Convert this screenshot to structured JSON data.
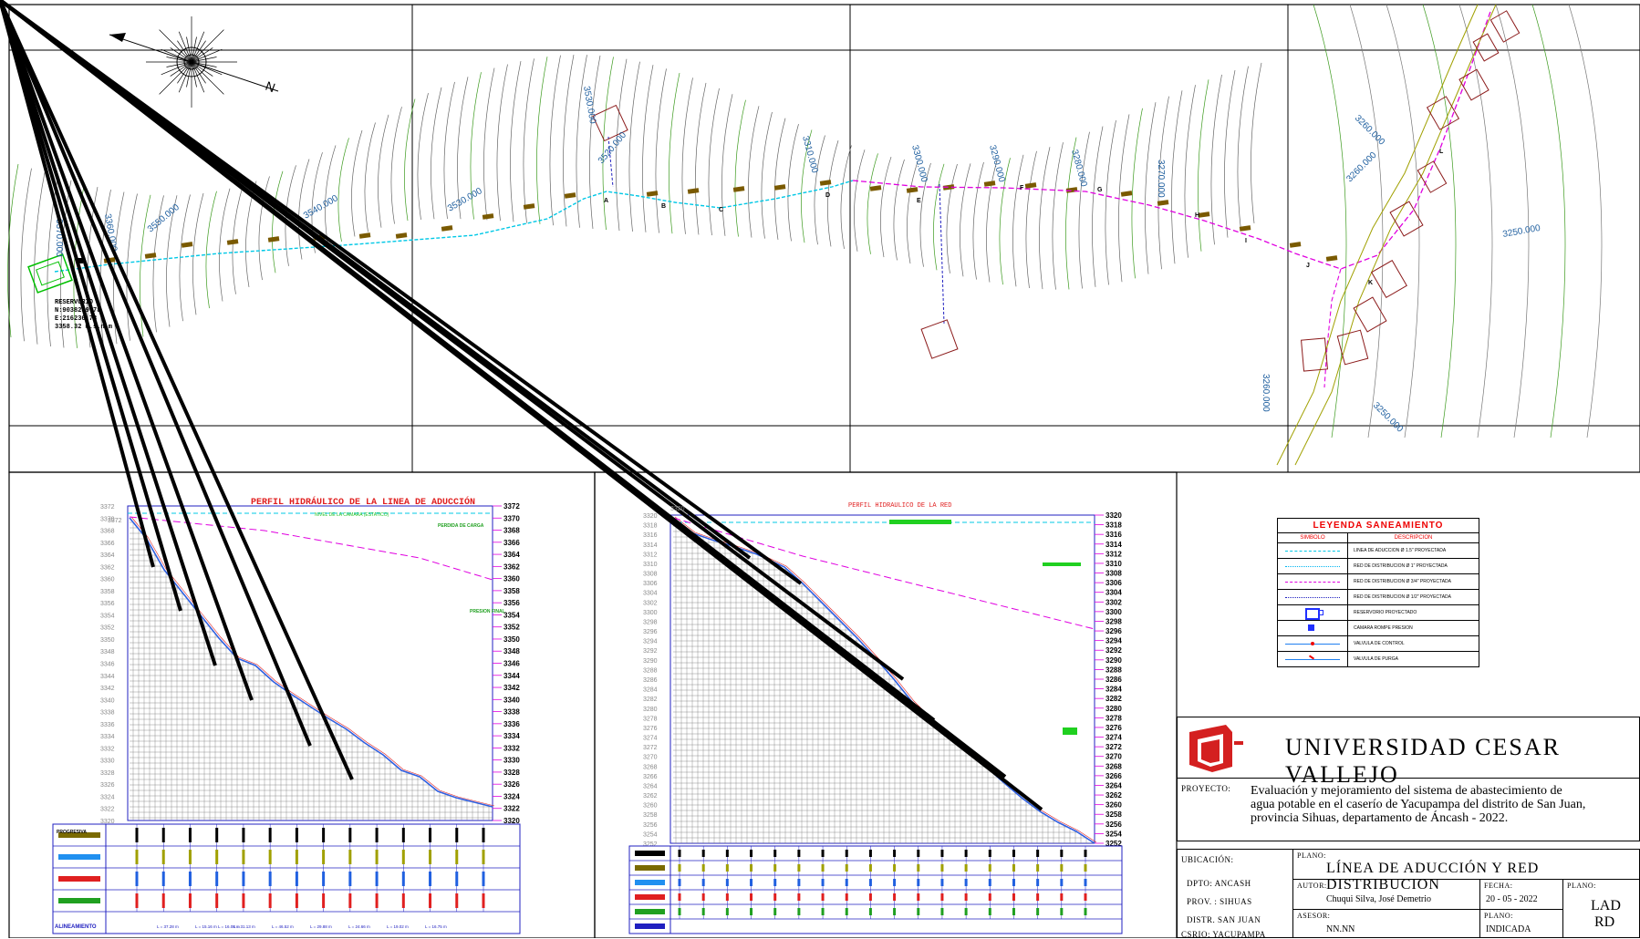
{
  "plan": {
    "reservoir": {
      "title": "RESERVORIO",
      "n": "N:9038239.78",
      "e": "E:216236.78",
      "elev": "3358.32 m.s.n.m"
    },
    "contours": [
      "3370.000",
      "3360.000",
      "3550.000",
      "3540.000",
      "3530.000",
      "3530.000",
      "3520.000",
      "3310.000",
      "3300.000",
      "3290.000",
      "3280.000",
      "3270.000",
      "3260.000",
      "3260.000",
      "3250.000",
      "3260.000",
      "3250.000"
    ],
    "points": [
      "A",
      "B",
      "C",
      "D",
      "E",
      "F",
      "G",
      "H",
      "I",
      "J",
      "K",
      "L"
    ]
  },
  "profile1": {
    "title": "PERFIL HIDRÁULICO DE LA LINEA DE ADUCCIÓN",
    "static_label": "NIVEL DE LA CAMARA (ESTATICO)",
    "loss_label": "PERDIDA DE CARGA",
    "final_label": "PRESION FINAL",
    "top_left": "3372",
    "y_ticks": [
      "3372",
      "3370",
      "3368",
      "3366",
      "3364",
      "3362",
      "3360",
      "3358",
      "3356",
      "3354",
      "3352",
      "3350",
      "3348",
      "3346",
      "3344",
      "3342",
      "3340",
      "3338",
      "3336",
      "3334",
      "3332",
      "3330",
      "3328",
      "3326",
      "3324",
      "3322",
      "3320"
    ],
    "progresiva_label": "PROGRESIVA",
    "alineamiento_label": "ALINEAMIENTO",
    "segments": [
      "L = 37.28 m",
      "L = 15.16 m L = 16.08 m",
      "L = 31.13 m",
      "L = 46.52 m",
      "L = 29.88 m",
      "L = 24.66 m",
      "L = 19.02 m",
      "L = 16.75 m"
    ]
  },
  "profile2": {
    "title": "PERFIL HIDRAULICO DE LA RED",
    "top_left": "3320",
    "y_ticks": [
      "3320",
      "3318",
      "3316",
      "3314",
      "3312",
      "3310",
      "3308",
      "3306",
      "3304",
      "3302",
      "3300",
      "3298",
      "3296",
      "3294",
      "3292",
      "3290",
      "3288",
      "3286",
      "3284",
      "3282",
      "3280",
      "3278",
      "3276",
      "3274",
      "3272",
      "3270",
      "3268",
      "3266",
      "3264",
      "3262",
      "3260",
      "3258",
      "3256",
      "3254",
      "3252"
    ]
  },
  "legend": {
    "title": "LEYENDA SANEAMIENTO",
    "col_symbol": "SIMBOLO",
    "col_desc": "DESCRIPCION",
    "rows": [
      {
        "desc": "LINEA DE ADUCCION Ø 1.5\" PROYECTADA",
        "color": "#00c8e6",
        "style": "dash"
      },
      {
        "desc": "RED DE DISTRIBUCION Ø 1\" PROYECTADA",
        "color": "#00b4f0",
        "style": "dot"
      },
      {
        "desc": "RED DE DISTRIBUCION Ø 3/4\" PROYECTADA",
        "color": "#e000e0",
        "style": "dash"
      },
      {
        "desc": "RED DE DISTRIBUCION Ø 1/2\" PROYECTADA",
        "color": "#2020c0",
        "style": "dot"
      },
      {
        "desc": "RESERVORIO PROYECTADO",
        "color": "#2030ff",
        "style": "box"
      },
      {
        "desc": "CAMARA ROMPE PRESION",
        "color": "#2030ff",
        "style": "small"
      },
      {
        "desc": "VALVULA DE CONTROL",
        "color": "#e00",
        "style": "valve"
      },
      {
        "desc": "VALVULA DE PURGA",
        "color": "#e00",
        "style": "purge"
      }
    ]
  },
  "titleblock": {
    "university": "UNIVERSIDAD CESAR VALLEJO",
    "proyecto_label": "PROYECTO:",
    "proyecto_l1": "Evaluación y mejoramiento del sistema de abastecimiento de",
    "proyecto_l2": "agua potable en el caserío de Yacupampa del distrito de San Juan,",
    "proyecto_l3": "provincia Sihuas, departamento de Áncash - 2022.",
    "ubicacion_label": "UBICACIÓN:",
    "dpto": "DPTO: ANCASH",
    "prov": "PROV.   : SIHUAS",
    "distr": "DISTR.  SAN JUAN",
    "csrio": "CSRIO: YACUPAMPA",
    "plano_label": "PLANO:",
    "plano_title": "LÍNEA DE ADUCCIÓN Y RED DISTRIBUCION",
    "autor_label": "AUTOR:",
    "autor": "Chuqui Silva, José Demetrio",
    "fecha_label": "FECHA:",
    "fecha": "20 - 05 - 2022",
    "plano_no_label": "PLANO:",
    "plano_no_1": "LAD",
    "plano_no_2": "RD",
    "asesor_label": "ASESOR:",
    "asesor": "NN.NN",
    "escala_label": "PLANO:",
    "escala": "INDICADA"
  },
  "colors": {
    "adduction": "#00c8e6",
    "network": "#e000e0",
    "terrain": "#3060e0",
    "accent": "#e02020"
  }
}
